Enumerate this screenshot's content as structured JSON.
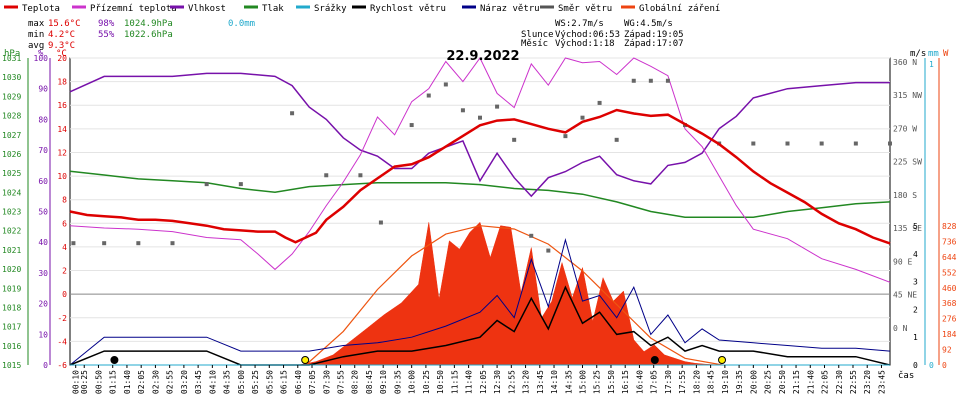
{
  "legend": [
    {
      "label": "Teplota",
      "color": "#dd0000"
    },
    {
      "label": "Přízemní teplota",
      "color": "#cc33cc"
    },
    {
      "label": "Vlhkost",
      "color": "#7711aa"
    },
    {
      "label": "Tlak",
      "color": "#228822"
    },
    {
      "label": "Srážky",
      "color": "#22aacc"
    },
    {
      "label": "Rychlost větru",
      "color": "#000000"
    },
    {
      "label": "Náraz větru",
      "color": "#000088"
    },
    {
      "label": "Směr větru",
      "color": "#555555"
    },
    {
      "label": "Globální záření",
      "color": "#ee4411"
    }
  ],
  "stats": {
    "max_label": "max",
    "max_temp": "15.6°C",
    "max_hum": "98%",
    "max_press": "1024.9hPa",
    "max_rain": "0.0mm",
    "min_label": "min",
    "min_temp": "4.2°C",
    "min_hum": "55%",
    "min_press": "1022.6hPa",
    "avg_label": "avg",
    "avg_temp": "9.3°C"
  },
  "info": {
    "ws": "WS:2.7m/s",
    "wg": "WG:4.5m/s",
    "sun_label": "Slunce",
    "sun_rise": "Východ:06:53",
    "sun_set": "Západ:19:05",
    "moon_label": "Měsíc",
    "moon_rise": "Východ:1:18",
    "moon_set": "Západ:17:07"
  },
  "title": "22.9.2022",
  "axis_labels": {
    "hpa": "hPa",
    "pct": "%",
    "degc": "°C",
    "ms": "m/s",
    "mm": "mm",
    "w": "W",
    "cas": "čas"
  },
  "chart_data": {
    "type": "line",
    "title": "22.9.2022",
    "x_ticks": [
      "00:10",
      "00:25",
      "00:50",
      "01:15",
      "01:40",
      "02:05",
      "02:30",
      "02:55",
      "03:20",
      "03:45",
      "04:10",
      "04:35",
      "05:00",
      "05:25",
      "05:50",
      "06:15",
      "06:40",
      "07:05",
      "07:30",
      "07:55",
      "08:20",
      "08:45",
      "09:10",
      "09:35",
      "10:00",
      "10:25",
      "10:50",
      "11:15",
      "11:40",
      "12:05",
      "12:30",
      "12:55",
      "13:20",
      "13:45",
      "14:10",
      "14:35",
      "15:00",
      "15:25",
      "15:50",
      "16:15",
      "16:40",
      "17:05",
      "17:30",
      "17:55",
      "18:20",
      "18:45",
      "19:10",
      "19:35",
      "20:00",
      "20:25",
      "20:50",
      "21:15",
      "21:40",
      "22:05",
      "22:30",
      "22:55",
      "23:20",
      "23:45"
    ],
    "y_axes": {
      "pressure_hPa": {
        "ticks": [
          1015,
          1016,
          1017,
          1018,
          1019,
          1020,
          1021,
          1022,
          1023,
          1024,
          1025,
          1026,
          1027,
          1028,
          1029,
          1030,
          1031
        ],
        "range": [
          1015,
          1031
        ]
      },
      "humidity_pct": {
        "ticks": [
          0,
          10,
          20,
          30,
          40,
          50,
          60,
          70,
          80,
          90,
          100
        ],
        "range": [
          0,
          100
        ]
      },
      "temperature_C": {
        "ticks": [
          -6,
          -4,
          -2,
          0,
          2,
          4,
          6,
          8,
          10,
          12,
          14,
          16,
          18,
          20
        ],
        "range": [
          -6,
          20
        ]
      },
      "wind_direction": {
        "ticks": [
          "0 N",
          "45 NE",
          "90 E",
          "135 SE",
          "180 S",
          "225 SW",
          "270 W",
          "315 NW",
          "360 N"
        ]
      },
      "wind_speed_ms": {
        "ticks": [
          0,
          1,
          2,
          3,
          4,
          5
        ],
        "range": [
          0,
          5
        ]
      },
      "rain_mm": {
        "ticks": [
          0,
          1
        ],
        "range": [
          0,
          1
        ]
      },
      "radiation_W": {
        "ticks": [
          0,
          92,
          184,
          276,
          368,
          460,
          552,
          644,
          736,
          828
        ],
        "range": [
          0,
          828
        ]
      }
    },
    "series": [
      {
        "name": "Teplota",
        "unit": "°C",
        "x_hours": [
          0,
          0.5,
          1,
          1.5,
          2,
          2.5,
          3,
          3.5,
          4,
          4.5,
          5,
          5.5,
          6,
          6.3,
          6.6,
          6.9,
          7.2,
          7.5,
          8,
          8.5,
          9,
          9.5,
          10,
          10.5,
          11,
          11.5,
          12,
          12.5,
          13,
          13.5,
          14,
          14.5,
          15,
          15.5,
          16,
          16.5,
          17,
          17.5,
          18,
          18.5,
          19,
          19.5,
          20,
          20.5,
          21,
          21.5,
          22,
          22.5,
          23,
          23.5,
          24
        ],
        "values": [
          7,
          6.7,
          6.6,
          6.5,
          6.3,
          6.3,
          6.2,
          6,
          5.8,
          5.5,
          5.4,
          5.3,
          5.3,
          4.8,
          4.4,
          4.8,
          5.2,
          6.3,
          7.4,
          8.8,
          9.8,
          10.8,
          11,
          11.6,
          12.5,
          13.4,
          14.3,
          14.7,
          14.8,
          14.4,
          14,
          13.7,
          14.6,
          15,
          15.6,
          15.3,
          15.1,
          15.2,
          14.4,
          13.6,
          12.7,
          11.6,
          10.4,
          9.4,
          8.6,
          7.8,
          6.8,
          6,
          5.5,
          4.8,
          4.3
        ]
      },
      {
        "name": "Přízemní teplota",
        "unit": "°C",
        "x_hours": [
          0,
          1,
          2,
          3,
          4,
          5,
          5.5,
          6,
          6.5,
          7,
          7.5,
          8,
          8.5,
          9,
          9.5,
          10,
          10.5,
          11,
          11.5,
          12,
          12.5,
          13,
          13.5,
          14,
          14.5,
          15,
          15.5,
          16,
          16.5,
          17,
          17.5,
          18,
          18.5,
          19,
          19.5,
          20,
          21,
          22,
          23,
          24
        ],
        "values": [
          5.8,
          5.6,
          5.5,
          5.3,
          4.8,
          4.6,
          3.4,
          2.1,
          3.4,
          5.3,
          7.5,
          9.5,
          11.8,
          15,
          13.5,
          16.3,
          17.4,
          19.7,
          18,
          20,
          17,
          15.8,
          19.5,
          17.7,
          20,
          19.6,
          19.7,
          18.6,
          20,
          19.3,
          18.5,
          14,
          12.5,
          10,
          7.5,
          5.5,
          4.7,
          3,
          2.1,
          1
        ]
      },
      {
        "name": "Vlhkost",
        "unit": "%",
        "x_hours": [
          0,
          1,
          2,
          3,
          4,
          5,
          6,
          6.5,
          7,
          7.5,
          8,
          8.5,
          9,
          9.5,
          10,
          10.5,
          11,
          11.5,
          12,
          12.5,
          13,
          13.5,
          14,
          14.5,
          15,
          15.5,
          16,
          16.5,
          17,
          17.5,
          18,
          18.5,
          19,
          19.5,
          20,
          21,
          22,
          23,
          24
        ],
        "values": [
          89,
          94,
          94,
          94,
          95,
          95,
          94,
          91,
          84,
          80,
          74,
          70,
          68,
          64,
          64,
          69,
          71,
          73,
          60,
          69,
          61,
          55,
          61,
          63,
          66,
          68,
          62,
          60,
          59,
          65,
          66,
          69,
          77,
          81,
          87,
          90,
          91,
          92,
          92
        ]
      },
      {
        "name": "Tlak",
        "unit": "hPa",
        "x_hours": [
          0,
          1,
          2,
          3,
          4,
          5,
          6,
          7,
          8,
          9,
          10,
          11,
          12,
          13,
          14,
          15,
          16,
          17,
          18,
          19,
          20,
          21,
          22,
          23,
          24
        ],
        "values": [
          1025.1,
          1024.9,
          1024.7,
          1024.6,
          1024.5,
          1024.2,
          1024.0,
          1024.3,
          1024.4,
          1024.5,
          1024.5,
          1024.5,
          1024.4,
          1024.2,
          1024.1,
          1023.9,
          1023.5,
          1023.0,
          1022.7,
          1022.7,
          1022.7,
          1023.0,
          1023.2,
          1023.4,
          1023.5
        ]
      },
      {
        "name": "Srážky",
        "unit": "mm",
        "x_hours": [
          0,
          24
        ],
        "values": [
          0,
          0
        ]
      },
      {
        "name": "Rychlost větru",
        "unit": "m/s",
        "x_hours": [
          0,
          1,
          2,
          3,
          4,
          5,
          6,
          7,
          8,
          9,
          10,
          11,
          12,
          12.5,
          13,
          13.5,
          14,
          14.5,
          15,
          15.5,
          16,
          16.5,
          17,
          17.5,
          18,
          18.5,
          19,
          20,
          21,
          22,
          23,
          24
        ],
        "values": [
          0,
          0.5,
          0.5,
          0.5,
          0.5,
          0,
          0,
          0,
          0.3,
          0.5,
          0.5,
          0.7,
          1,
          1.6,
          1.2,
          2.4,
          1.3,
          2.8,
          1.5,
          1.9,
          1.1,
          1.2,
          0.7,
          1,
          0.5,
          0.7,
          0.5,
          0.5,
          0.3,
          0.3,
          0.3,
          0
        ]
      },
      {
        "name": "Náraz větru",
        "unit": "m/s",
        "x_hours": [
          0,
          1,
          2,
          3,
          4,
          5,
          6,
          7,
          8,
          9,
          10,
          11,
          12,
          12.5,
          13,
          13.5,
          14,
          14.5,
          15,
          15.5,
          16,
          16.5,
          17,
          17.5,
          18,
          18.5,
          19,
          20,
          21,
          22,
          23,
          24
        ],
        "values": [
          0,
          1,
          1,
          1,
          1,
          0.5,
          0.5,
          0.5,
          0.7,
          0.8,
          1,
          1.4,
          1.9,
          2.5,
          1.7,
          3.8,
          2.1,
          4.5,
          2.3,
          2.5,
          1.7,
          2.8,
          1.1,
          1.8,
          0.8,
          1.3,
          0.9,
          0.8,
          0.7,
          0.6,
          0.6,
          0.5
        ]
      },
      {
        "name": "Směr větru",
        "unit": "°",
        "x_hours": [
          0.1,
          1,
          2,
          3,
          4,
          5,
          6.5,
          7.5,
          8.5,
          9.1,
          10,
          10.5,
          11,
          11.5,
          12,
          12.5,
          13,
          13.5,
          14,
          14.5,
          15,
          15.5,
          16,
          16.5,
          17,
          17.5,
          18,
          19,
          20,
          21,
          22,
          23,
          24
        ],
        "values": [
          120,
          120,
          120,
          120,
          200,
          200,
          296,
          212,
          212,
          148,
          280,
          320,
          335,
          300,
          290,
          305,
          260,
          130,
          110,
          265,
          290,
          310,
          260,
          340,
          340,
          340,
          280,
          255,
          255,
          255,
          255,
          255,
          255
        ]
      },
      {
        "name": "Globální záření",
        "unit": "W",
        "x_hours": [
          6.7,
          7.2,
          7.7,
          8.2,
          8.7,
          9.2,
          9.7,
          10.2,
          10.5,
          10.8,
          11.1,
          11.4,
          11.7,
          12.0,
          12.3,
          12.6,
          12.9,
          13.2,
          13.5,
          13.8,
          14.1,
          14.4,
          14.7,
          15.0,
          15.3,
          15.6,
          15.9,
          16.2,
          16.5,
          16.8,
          17.1,
          17.4,
          17.7,
          18.0,
          18.3,
          18.6,
          18.9,
          19.1
        ],
        "values": [
          0,
          20,
          60,
          140,
          220,
          300,
          370,
          480,
          850,
          390,
          740,
          690,
          790,
          850,
          640,
          830,
          820,
          430,
          700,
          280,
          380,
          610,
          400,
          580,
          260,
          520,
          380,
          440,
          150,
          80,
          120,
          60,
          40,
          20,
          10,
          5,
          2,
          0
        ]
      },
      {
        "name": "Teoretické záření",
        "unit": "W",
        "x_hours": [
          6.9,
          8,
          9,
          10,
          11,
          12,
          13,
          14,
          15,
          16,
          17,
          18,
          19.1
        ],
        "values": [
          0,
          200,
          450,
          650,
          780,
          830,
          810,
          720,
          560,
          360,
          160,
          40,
          0
        ]
      }
    ]
  }
}
